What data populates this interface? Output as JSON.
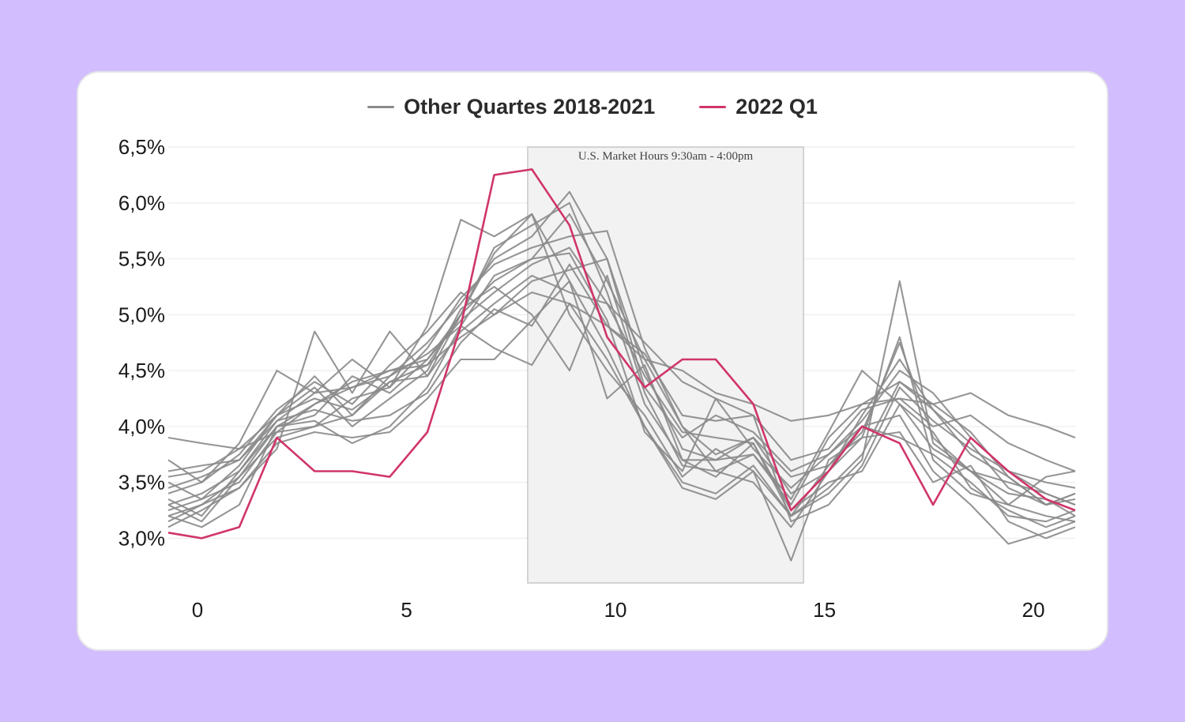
{
  "colors": {
    "background": "#d2bdff",
    "other": "#8a8a8a",
    "highlight": "#d0356a",
    "band": "#f2f2f3"
  },
  "legend": {
    "other_label": "Other Quartes 2018-2021",
    "highlight_label": "2022 Q1"
  },
  "chart_data": {
    "type": "line",
    "title": "",
    "xlabel": "",
    "ylabel": "",
    "xlim": [
      -0.7,
      21
    ],
    "ylim": [
      2.6,
      6.6
    ],
    "x_ticks": [
      0,
      5,
      10,
      15,
      20
    ],
    "x_tick_labels": [
      "0",
      "5",
      "10",
      "15",
      "20"
    ],
    "y_ticks": [
      3.0,
      3.5,
      4.0,
      4.5,
      5.0,
      5.5,
      6.0,
      6.5
    ],
    "y_tick_labels": [
      "3,0%",
      "3,5%",
      "4,0%",
      "4,5%",
      "5,0%",
      "5,5%",
      "6,0%",
      "6,5%"
    ],
    "grid": "horizontal",
    "annotation": {
      "text": "U.S. Market Hours 9:30am - 4:00pm",
      "x_start": 7.9,
      "x_end": 14.5
    },
    "x": [
      -0.7,
      0.1,
      1,
      1.9,
      2.8,
      3.7,
      4.6,
      5.5,
      6.3,
      7.1,
      8,
      8.9,
      9.8,
      10.7,
      11.6,
      12.4,
      13.3,
      14.2,
      15.1,
      15.9,
      16.8,
      17.6,
      18.5,
      19.4,
      20.3,
      21
    ],
    "series": [
      {
        "name": "2022 Q1",
        "highlight": true,
        "values": [
          3.05,
          3.0,
          3.1,
          3.9,
          3.6,
          3.6,
          3.55,
          3.95,
          4.9,
          6.25,
          6.3,
          5.8,
          4.8,
          4.35,
          4.6,
          4.6,
          4.2,
          3.25,
          3.6,
          4.0,
          3.85,
          3.3,
          3.9,
          3.6,
          3.35,
          3.25
        ]
      },
      {
        "values": [
          3.9,
          3.85,
          3.8,
          3.95,
          4.2,
          4.4,
          4.5,
          4.55,
          4.8,
          5.0,
          5.2,
          5.1,
          4.9,
          4.6,
          4.5,
          4.3,
          4.2,
          4.05,
          4.1,
          4.2,
          4.25,
          4.2,
          4.3,
          4.1,
          4.0,
          3.9
        ]
      },
      {
        "values": [
          3.6,
          3.65,
          3.7,
          4.05,
          4.3,
          4.35,
          4.5,
          4.6,
          4.95,
          5.2,
          5.45,
          5.6,
          5.1,
          4.75,
          4.4,
          4.25,
          4.1,
          3.7,
          3.8,
          4.15,
          4.25,
          4.0,
          4.1,
          3.85,
          3.7,
          3.6
        ]
      },
      {
        "values": [
          3.55,
          3.6,
          3.8,
          4.1,
          4.25,
          4.15,
          4.4,
          4.55,
          5.0,
          5.3,
          5.5,
          5.9,
          5.3,
          4.6,
          4.0,
          3.75,
          3.9,
          3.55,
          3.65,
          3.95,
          4.75,
          3.9,
          3.6,
          3.5,
          3.4,
          3.3
        ]
      },
      {
        "values": [
          3.3,
          3.4,
          3.6,
          4.0,
          4.2,
          4.35,
          4.45,
          4.75,
          5.1,
          5.5,
          5.7,
          6.1,
          5.5,
          4.5,
          3.8,
          3.7,
          3.9,
          3.4,
          3.6,
          3.9,
          4.8,
          3.7,
          3.4,
          3.3,
          3.2,
          3.15
        ]
      },
      {
        "values": [
          3.2,
          3.1,
          3.3,
          4.0,
          4.1,
          4.45,
          4.3,
          4.6,
          5.0,
          5.6,
          5.8,
          6.0,
          5.2,
          4.2,
          3.7,
          3.55,
          3.85,
          3.2,
          3.4,
          3.7,
          5.3,
          3.85,
          3.6,
          3.4,
          3.35,
          3.2
        ]
      },
      {
        "values": [
          3.4,
          3.5,
          3.75,
          4.15,
          4.4,
          4.2,
          4.55,
          4.85,
          5.2,
          5.0,
          5.3,
          5.4,
          5.5,
          4.35,
          3.9,
          4.1,
          3.95,
          3.6,
          3.75,
          4.05,
          4.5,
          4.3,
          3.9,
          3.6,
          3.5,
          3.45
        ]
      },
      {
        "values": [
          3.25,
          3.35,
          3.5,
          3.95,
          4.0,
          4.25,
          4.35,
          4.7,
          5.15,
          5.45,
          5.6,
          5.7,
          5.75,
          4.7,
          4.0,
          3.6,
          3.75,
          3.3,
          3.9,
          4.2,
          4.4,
          4.15,
          3.75,
          3.55,
          3.3,
          3.4
        ]
      },
      {
        "values": [
          3.7,
          3.5,
          3.85,
          4.5,
          4.3,
          4.6,
          4.35,
          4.9,
          5.85,
          5.7,
          5.9,
          5.3,
          4.25,
          4.55,
          3.7,
          3.7,
          3.75,
          3.35,
          3.95,
          4.5,
          4.2,
          3.8,
          3.6,
          3.3,
          3.55,
          3.6
        ]
      },
      {
        "values": [
          3.1,
          3.25,
          3.45,
          3.8,
          4.85,
          4.3,
          4.85,
          4.45,
          5.0,
          5.55,
          5.9,
          5.0,
          4.5,
          4.1,
          3.55,
          3.8,
          3.6,
          2.8,
          3.7,
          3.9,
          3.95,
          3.5,
          3.65,
          3.15,
          3.0,
          3.1
        ]
      },
      {
        "values": [
          3.35,
          3.2,
          3.6,
          4.05,
          4.15,
          4.05,
          4.1,
          4.3,
          4.75,
          5.05,
          4.9,
          5.45,
          4.9,
          4.65,
          4.1,
          4.05,
          4.1,
          3.15,
          3.3,
          3.65,
          4.35,
          4.05,
          3.8,
          3.6,
          3.4,
          3.3
        ]
      },
      {
        "values": [
          3.15,
          3.3,
          3.55,
          3.9,
          4.0,
          4.1,
          4.4,
          4.45,
          4.85,
          5.1,
          5.35,
          5.2,
          5.1,
          4.45,
          3.95,
          3.9,
          3.85,
          3.25,
          3.5,
          3.6,
          4.2,
          3.95,
          3.45,
          3.25,
          3.1,
          3.2
        ]
      },
      {
        "values": [
          3.45,
          3.55,
          3.7,
          4.1,
          4.35,
          4.0,
          4.25,
          4.5,
          5.05,
          5.25,
          5.0,
          4.5,
          5.35,
          4.3,
          3.65,
          3.6,
          3.5,
          3.1,
          3.6,
          4.1,
          4.6,
          4.15,
          3.85,
          3.45,
          3.3,
          3.35
        ]
      },
      {
        "values": [
          3.3,
          3.15,
          3.55,
          4.0,
          4.05,
          3.85,
          4.0,
          4.35,
          4.9,
          5.35,
          5.5,
          5.55,
          4.95,
          3.95,
          3.6,
          4.25,
          3.8,
          3.45,
          3.75,
          4.0,
          3.9,
          3.75,
          3.5,
          3.2,
          3.15,
          3.25
        ]
      },
      {
        "values": [
          3.5,
          3.35,
          3.65,
          4.1,
          4.45,
          4.1,
          4.45,
          4.65,
          4.9,
          4.7,
          4.55,
          5.1,
          4.6,
          4.0,
          3.5,
          3.4,
          3.65,
          3.2,
          3.45,
          3.75,
          4.4,
          4.2,
          3.95,
          3.55,
          3.3,
          3.4
        ]
      },
      {
        "values": [
          3.2,
          3.3,
          3.45,
          3.85,
          3.95,
          3.9,
          3.95,
          4.25,
          4.6,
          4.6,
          4.95,
          5.3,
          4.7,
          4.0,
          3.45,
          3.35,
          3.6,
          3.2,
          3.65,
          4.0,
          4.1,
          3.6,
          3.3,
          2.95,
          3.05,
          3.15
        ]
      }
    ]
  }
}
